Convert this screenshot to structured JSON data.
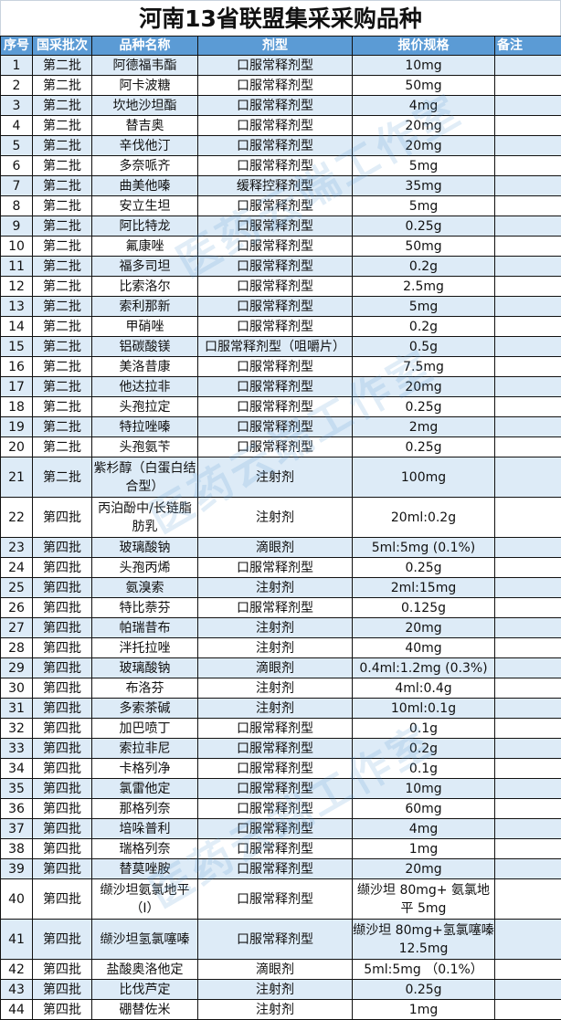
{
  "title": "河南13省联盟集采采购品种",
  "watermark": "医药云端工作室",
  "colors": {
    "header": "#5b9bd5",
    "alt_row": "#ddebf7"
  },
  "columns": [
    "序号",
    "国采批次",
    "品种名称",
    "剂型",
    "报价规格",
    "备注"
  ],
  "rows": [
    [
      "1",
      "第二批",
      "阿德福韦酯",
      "口服常释剂型",
      "10mg",
      ""
    ],
    [
      "2",
      "第二批",
      "阿卡波糖",
      "口服常释剂型",
      "50mg",
      ""
    ],
    [
      "3",
      "第二批",
      "坎地沙坦酯",
      "口服常释剂型",
      "4mg",
      ""
    ],
    [
      "4",
      "第二批",
      "替吉奥",
      "口服常释剂型",
      "20mg",
      ""
    ],
    [
      "5",
      "第二批",
      "辛伐他汀",
      "口服常释剂型",
      "20mg",
      ""
    ],
    [
      "6",
      "第二批",
      "多奈哌齐",
      "口服常释剂型",
      "5mg",
      ""
    ],
    [
      "7",
      "第二批",
      "曲美他嗪",
      "缓释控释剂型",
      "35mg",
      ""
    ],
    [
      "8",
      "第二批",
      "安立生坦",
      "口服常释剂型",
      "5mg",
      ""
    ],
    [
      "9",
      "第二批",
      "阿比特龙",
      "口服常释剂型",
      "0.25g",
      ""
    ],
    [
      "10",
      "第二批",
      "氟康唑",
      "口服常释剂型",
      "50mg",
      ""
    ],
    [
      "11",
      "第二批",
      "福多司坦",
      "口服常释剂型",
      "0.2g",
      ""
    ],
    [
      "12",
      "第二批",
      "比索洛尔",
      "口服常释剂型",
      "2.5mg",
      ""
    ],
    [
      "13",
      "第二批",
      "索利那新",
      "口服常释剂型",
      "5mg",
      ""
    ],
    [
      "14",
      "第二批",
      "甲硝唑",
      "口服常释剂型",
      "0.2g",
      ""
    ],
    [
      "15",
      "第二批",
      "铝碳酸镁",
      "口服常释剂型（咀嚼片）",
      "0.5g",
      ""
    ],
    [
      "16",
      "第二批",
      "美洛昔康",
      "口服常释剂型",
      "7.5mg",
      ""
    ],
    [
      "17",
      "第二批",
      "他达拉非",
      "口服常释剂型",
      "20mg",
      ""
    ],
    [
      "18",
      "第二批",
      "头孢拉定",
      "口服常释剂型",
      "0.25g",
      ""
    ],
    [
      "19",
      "第二批",
      "特拉唑嗪",
      "口服常释剂型",
      "2mg",
      ""
    ],
    [
      "20",
      "第二批",
      "头孢氨苄",
      "口服常释剂型",
      "0.25g",
      ""
    ],
    [
      "21",
      "第二批",
      "紫杉醇（白蛋白结合型）",
      "注射剂",
      "100mg",
      ""
    ],
    [
      "22",
      "第四批",
      "丙泊酚中/长链脂肪乳",
      "注射剂",
      "20ml:0.2g",
      ""
    ],
    [
      "23",
      "第四批",
      "玻璃酸钠",
      "滴眼剂",
      "5ml:5mg (0.1%)",
      ""
    ],
    [
      "24",
      "第四批",
      "头孢丙烯",
      "口服常释剂型",
      "0.25g",
      ""
    ],
    [
      "25",
      "第四批",
      "氨溴索",
      "注射剂",
      "2ml:15mg",
      ""
    ],
    [
      "26",
      "第四批",
      "特比萘芬",
      "口服常释剂型",
      "0.125g",
      ""
    ],
    [
      "27",
      "第四批",
      "帕瑞昔布",
      "注射剂",
      "20mg",
      ""
    ],
    [
      "28",
      "第四批",
      "泮托拉唑",
      "注射剂",
      "40mg",
      ""
    ],
    [
      "29",
      "第四批",
      "玻璃酸钠",
      "滴眼剂",
      "0.4ml:1.2mg (0.3%)",
      ""
    ],
    [
      "30",
      "第四批",
      "布洛芬",
      "注射剂",
      "4ml:0.4g",
      ""
    ],
    [
      "31",
      "第四批",
      "多索茶碱",
      "注射剂",
      "10ml:0.1g",
      ""
    ],
    [
      "32",
      "第四批",
      "加巴喷丁",
      "口服常释剂型",
      "0.1g",
      ""
    ],
    [
      "33",
      "第四批",
      "索拉非尼",
      "口服常释剂型",
      "0.2g",
      ""
    ],
    [
      "34",
      "第四批",
      "卡格列净",
      "口服常释剂型",
      "0.1g",
      ""
    ],
    [
      "35",
      "第四批",
      "氯雷他定",
      "口服常释剂型",
      "10mg",
      ""
    ],
    [
      "36",
      "第四批",
      "那格列奈",
      "口服常释剂型",
      "60mg",
      ""
    ],
    [
      "37",
      "第四批",
      "培哚普利",
      "口服常释剂型",
      "4mg",
      ""
    ],
    [
      "38",
      "第四批",
      "瑞格列奈",
      "口服常释剂型",
      "1mg",
      ""
    ],
    [
      "39",
      "第四批",
      "替莫唑胺",
      "口服常释剂型",
      "20mg",
      ""
    ],
    [
      "40",
      "第四批",
      "缬沙坦氨氯地平（I）",
      "口服常释剂型",
      "缬沙坦 80mg+ 氨氯地平 5mg",
      ""
    ],
    [
      "41",
      "第四批",
      "缬沙坦氢氯噻嗪",
      "口服常释剂型",
      "缬沙坦 80mg+氢氯噻嗪12.5mg",
      ""
    ],
    [
      "42",
      "第四批",
      "盐酸奥洛他定",
      "滴眼剂",
      "5ml:5mg （0.1%）",
      ""
    ],
    [
      "43",
      "第四批",
      "比伐芦定",
      "注射剂",
      "0.25g",
      ""
    ],
    [
      "44",
      "第四批",
      "硼替佐米",
      "注射剂",
      "1mg",
      ""
    ]
  ]
}
